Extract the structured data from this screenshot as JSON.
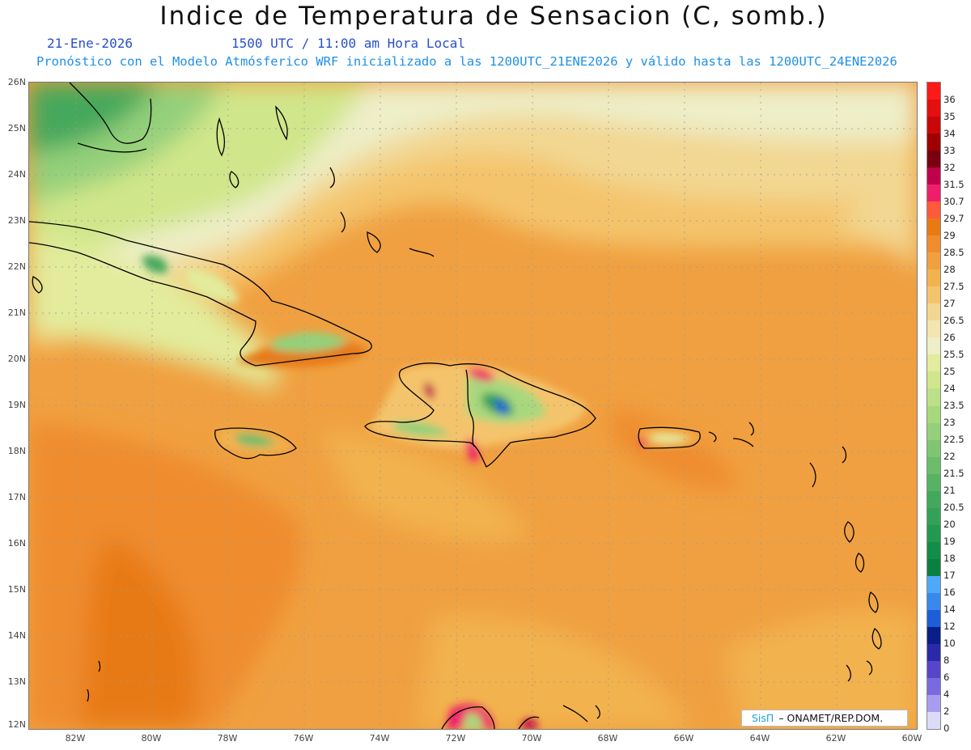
{
  "title": "Indice de Temperatura de Sensacion (C, somb.)",
  "date": "21-Ene-2026",
  "time": "1500 UTC / 11:00 am Hora Local",
  "subtitle": "Pronóstico con el Modelo Atmósferico WRF inicializado a las 1200UTC_21ENE2026 y válido hasta las  1200UTC_24ENE2026",
  "credit": {
    "logo": "SisΠ",
    "text": "– ONAMET/REP.DOM."
  },
  "y_axis": [
    "26N",
    "25N",
    "24N",
    "23N",
    "22N",
    "21N",
    "20N",
    "19N",
    "18N",
    "17N",
    "16N",
    "15N",
    "14N",
    "13N",
    "12N"
  ],
  "x_axis": [
    "82W",
    "80W",
    "78W",
    "76W",
    "74W",
    "72W",
    "70W",
    "68W",
    "66W",
    "64W",
    "62W",
    "60W"
  ],
  "colorbar": [
    {
      "label": "36",
      "color": "#ff1a1a"
    },
    {
      "label": "35",
      "color": "#e60f0f"
    },
    {
      "label": "34",
      "color": "#c80808"
    },
    {
      "label": "33",
      "color": "#a00000"
    },
    {
      "label": "32",
      "color": "#7a0010"
    },
    {
      "label": "31.5",
      "color": "#c0004a"
    },
    {
      "label": "30.7",
      "color": "#f01e6a"
    },
    {
      "label": "29.7",
      "color": "#ff5a3a"
    },
    {
      "label": "29",
      "color": "#e87a14"
    },
    {
      "label": "28.5",
      "color": "#ef8c2e"
    },
    {
      "label": "28",
      "color": "#f0a040"
    },
    {
      "label": "27.5",
      "color": "#f2b24e"
    },
    {
      "label": "27",
      "color": "#f4c46c"
    },
    {
      "label": "26.5",
      "color": "#f2d792"
    },
    {
      "label": "26",
      "color": "#f0e6ae"
    },
    {
      "label": "25.5",
      "color": "#eeeec8"
    },
    {
      "label": "25",
      "color": "#e2ec9c"
    },
    {
      "label": "24",
      "color": "#d0e68a"
    },
    {
      "label": "23.5",
      "color": "#bce08a"
    },
    {
      "label": "23",
      "color": "#a8d87e"
    },
    {
      "label": "22.5",
      "color": "#94d07a"
    },
    {
      "label": "22",
      "color": "#80c672"
    },
    {
      "label": "21.5",
      "color": "#6cbc6c"
    },
    {
      "label": "21",
      "color": "#58b264"
    },
    {
      "label": "20.5",
      "color": "#44a85c"
    },
    {
      "label": "20",
      "color": "#34a058"
    },
    {
      "label": "19",
      "color": "#229850"
    },
    {
      "label": "18",
      "color": "#128e48"
    },
    {
      "label": "17",
      "color": "#0a8040"
    },
    {
      "label": "16",
      "color": "#50a8f8"
    },
    {
      "label": "14",
      "color": "#3a88ec"
    },
    {
      "label": "12",
      "color": "#1c5ed8"
    },
    {
      "label": "10",
      "color": "#0a1e88"
    },
    {
      "label": "8",
      "color": "#2a2aa8"
    },
    {
      "label": "6",
      "color": "#5846c8"
    },
    {
      "label": "4",
      "color": "#7a6ae0"
    },
    {
      "label": "2",
      "color": "#a89cf0"
    },
    {
      "label": "0",
      "color": "#dcdcf8"
    }
  ]
}
